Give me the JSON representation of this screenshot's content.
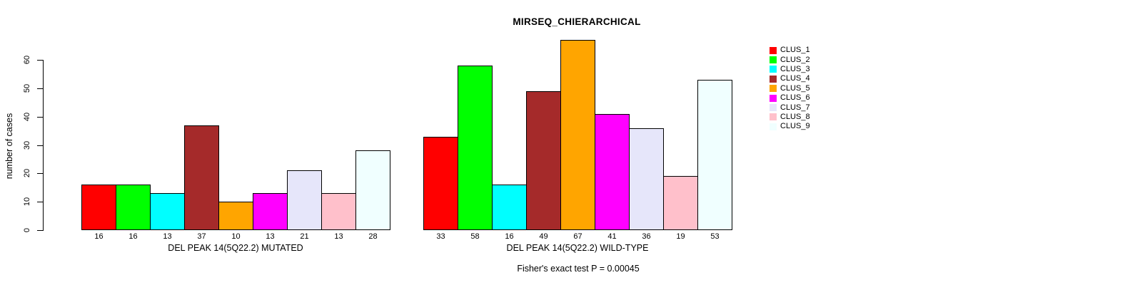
{
  "title": "MIRSEQ_CHIERARCHICAL",
  "footer": "Fisher's exact test P = 0.00045",
  "y_axis": {
    "label": "number of cases",
    "ticks": [
      0,
      10,
      20,
      30,
      40,
      50,
      60
    ],
    "range": [
      0,
      60
    ]
  },
  "legend": {
    "items": [
      {
        "label": "CLUS_1",
        "color": "#FF0000"
      },
      {
        "label": "CLUS_2",
        "color": "#00FF00"
      },
      {
        "label": "CLUS_3",
        "color": "#00FFFF"
      },
      {
        "label": "CLUS_4",
        "color": "#A52A2A"
      },
      {
        "label": "CLUS_5",
        "color": "#FFA500"
      },
      {
        "label": "CLUS_6",
        "color": "#FF00FF"
      },
      {
        "label": "CLUS_7",
        "color": "#E6E6FA"
      },
      {
        "label": "CLUS_8",
        "color": "#FFC0CB"
      },
      {
        "label": "CLUS_9",
        "color": "#F0FFFF"
      }
    ]
  },
  "chart_data": [
    {
      "type": "bar",
      "group": "mutated",
      "title": "MIRSEQ_CHIERARCHICAL",
      "xlabel": "DEL PEAK 14(5Q22.2) MUTATED",
      "ylabel": "number of cases",
      "ylim": [
        0,
        60
      ],
      "categories": [
        "CLUS_1",
        "CLUS_2",
        "CLUS_3",
        "CLUS_4",
        "CLUS_5",
        "CLUS_6",
        "CLUS_7",
        "CLUS_8",
        "CLUS_9"
      ],
      "values": [
        16,
        16,
        13,
        37,
        10,
        13,
        21,
        13,
        28
      ],
      "bar_labels": [
        "16",
        "16",
        "13",
        "37",
        "10",
        "13",
        "21",
        "13",
        "28"
      ],
      "colors": [
        "#FF0000",
        "#00FF00",
        "#00FFFF",
        "#A52A2A",
        "#FFA500",
        "#FF00FF",
        "#E6E6FA",
        "#FFC0CB",
        "#F0FFFF"
      ]
    },
    {
      "type": "bar",
      "group": "wild-type",
      "title": "MIRSEQ_CHIERARCHICAL",
      "xlabel": "DEL PEAK 14(5Q22.2) WILD-TYPE",
      "ylabel": "number of cases",
      "ylim": [
        0,
        60
      ],
      "categories": [
        "CLUS_1",
        "CLUS_2",
        "CLUS_3",
        "CLUS_4",
        "CLUS_5",
        "CLUS_6",
        "CLUS_7",
        "CLUS_8",
        "CLUS_9"
      ],
      "values": [
        33,
        58,
        16,
        49,
        67,
        41,
        36,
        19,
        53
      ],
      "bar_labels": [
        "33",
        "58",
        "16",
        "49",
        "67",
        "41",
        "36",
        "19",
        "53"
      ],
      "colors": [
        "#FF0000",
        "#00FF00",
        "#00FFFF",
        "#A52A2A",
        "#FFA500",
        "#FF00FF",
        "#E6E6FA",
        "#FFC0CB",
        "#F0FFFF"
      ]
    }
  ]
}
